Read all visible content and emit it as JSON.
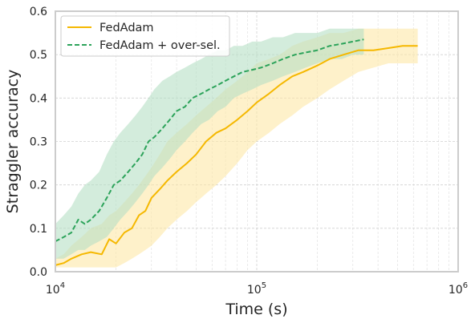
{
  "chart_data": {
    "type": "line",
    "xlabel": "Time (s)",
    "ylabel": "Straggler accuracy",
    "xscale": "log",
    "xlim": [
      10000,
      1000000
    ],
    "ylim": [
      0,
      0.6
    ],
    "grid": true,
    "legend_position": "top-left",
    "x_ticks": [
      {
        "value": 10000,
        "base": "10",
        "exp": "4"
      },
      {
        "value": 100000,
        "base": "10",
        "exp": "5"
      },
      {
        "value": 1000000,
        "base": "10",
        "exp": "6"
      }
    ],
    "y_ticks": [
      {
        "value": 0.0,
        "label": "0.0"
      },
      {
        "value": 0.1,
        "label": "0.1"
      },
      {
        "value": 0.2,
        "label": "0.2"
      },
      {
        "value": 0.3,
        "label": "0.3"
      },
      {
        "value": 0.4,
        "label": "0.4"
      },
      {
        "value": 0.5,
        "label": "0.5"
      },
      {
        "value": 0.6,
        "label": "0.6"
      }
    ],
    "series": [
      {
        "name": "FedAdam",
        "color": "#f5b800",
        "band_color": "#fde7a6",
        "style": "solid",
        "x": [
          10000,
          11000,
          12000,
          13500,
          15000,
          17000,
          18500,
          20000,
          22000,
          24000,
          26000,
          28000,
          30000,
          33000,
          36000,
          40000,
          45000,
          50000,
          56000,
          63000,
          70000,
          80000,
          90000,
          100000,
          115000,
          130000,
          150000,
          170000,
          200000,
          230000,
          270000,
          320000,
          380000,
          450000,
          530000,
          630000
        ],
        "y": [
          0.015,
          0.02,
          0.03,
          0.04,
          0.045,
          0.04,
          0.075,
          0.065,
          0.09,
          0.1,
          0.13,
          0.14,
          0.17,
          0.19,
          0.21,
          0.23,
          0.25,
          0.27,
          0.3,
          0.32,
          0.33,
          0.35,
          0.37,
          0.39,
          0.41,
          0.43,
          0.45,
          0.46,
          0.475,
          0.49,
          0.5,
          0.51,
          0.51,
          0.515,
          0.52,
          0.52
        ],
        "lower": [
          0.01,
          0.01,
          0.01,
          0.01,
          0.01,
          0.01,
          0.01,
          0.01,
          0.02,
          0.03,
          0.04,
          0.05,
          0.06,
          0.08,
          0.1,
          0.12,
          0.14,
          0.16,
          0.18,
          0.2,
          0.22,
          0.25,
          0.28,
          0.3,
          0.32,
          0.34,
          0.36,
          0.38,
          0.4,
          0.42,
          0.44,
          0.46,
          0.47,
          0.48,
          0.48,
          0.48
        ],
        "upper": [
          0.03,
          0.04,
          0.06,
          0.08,
          0.1,
          0.11,
          0.13,
          0.14,
          0.16,
          0.18,
          0.2,
          0.22,
          0.24,
          0.27,
          0.3,
          0.32,
          0.34,
          0.36,
          0.38,
          0.4,
          0.42,
          0.44,
          0.46,
          0.48,
          0.49,
          0.5,
          0.52,
          0.53,
          0.54,
          0.55,
          0.55,
          0.56,
          0.56,
          0.56,
          0.56,
          0.56
        ]
      },
      {
        "name": "FedAdam + over-sel.",
        "color": "#2ca35a",
        "band_color": "#b6e0c4",
        "style": "dashed",
        "x": [
          10000,
          11000,
          12000,
          13000,
          14000,
          15000,
          16500,
          18000,
          19500,
          21000,
          23000,
          25000,
          27000,
          29000,
          31000,
          34000,
          37000,
          40000,
          44000,
          48000,
          53000,
          58000,
          64000,
          70000,
          77000,
          85000,
          95000,
          105000,
          120000,
          135000,
          155000,
          175000,
          200000,
          230000,
          265000,
          300000,
          340000
        ],
        "y": [
          0.07,
          0.08,
          0.09,
          0.12,
          0.11,
          0.12,
          0.14,
          0.17,
          0.2,
          0.21,
          0.23,
          0.25,
          0.27,
          0.3,
          0.31,
          0.33,
          0.35,
          0.37,
          0.38,
          0.4,
          0.41,
          0.42,
          0.43,
          0.44,
          0.45,
          0.46,
          0.465,
          0.47,
          0.48,
          0.49,
          0.5,
          0.505,
          0.51,
          0.52,
          0.525,
          0.53,
          0.535
        ],
        "lower": [
          0.03,
          0.03,
          0.04,
          0.05,
          0.05,
          0.06,
          0.07,
          0.08,
          0.1,
          0.12,
          0.14,
          0.16,
          0.18,
          0.2,
          0.22,
          0.24,
          0.26,
          0.28,
          0.3,
          0.32,
          0.34,
          0.35,
          0.37,
          0.38,
          0.4,
          0.41,
          0.42,
          0.43,
          0.44,
          0.45,
          0.46,
          0.47,
          0.48,
          0.49,
          0.49,
          0.5,
          0.5
        ],
        "upper": [
          0.11,
          0.13,
          0.15,
          0.18,
          0.2,
          0.21,
          0.23,
          0.27,
          0.3,
          0.32,
          0.34,
          0.36,
          0.38,
          0.4,
          0.42,
          0.44,
          0.45,
          0.46,
          0.47,
          0.48,
          0.49,
          0.5,
          0.51,
          0.51,
          0.52,
          0.52,
          0.53,
          0.53,
          0.54,
          0.54,
          0.55,
          0.55,
          0.55,
          0.56,
          0.56,
          0.56,
          0.56
        ]
      }
    ]
  }
}
